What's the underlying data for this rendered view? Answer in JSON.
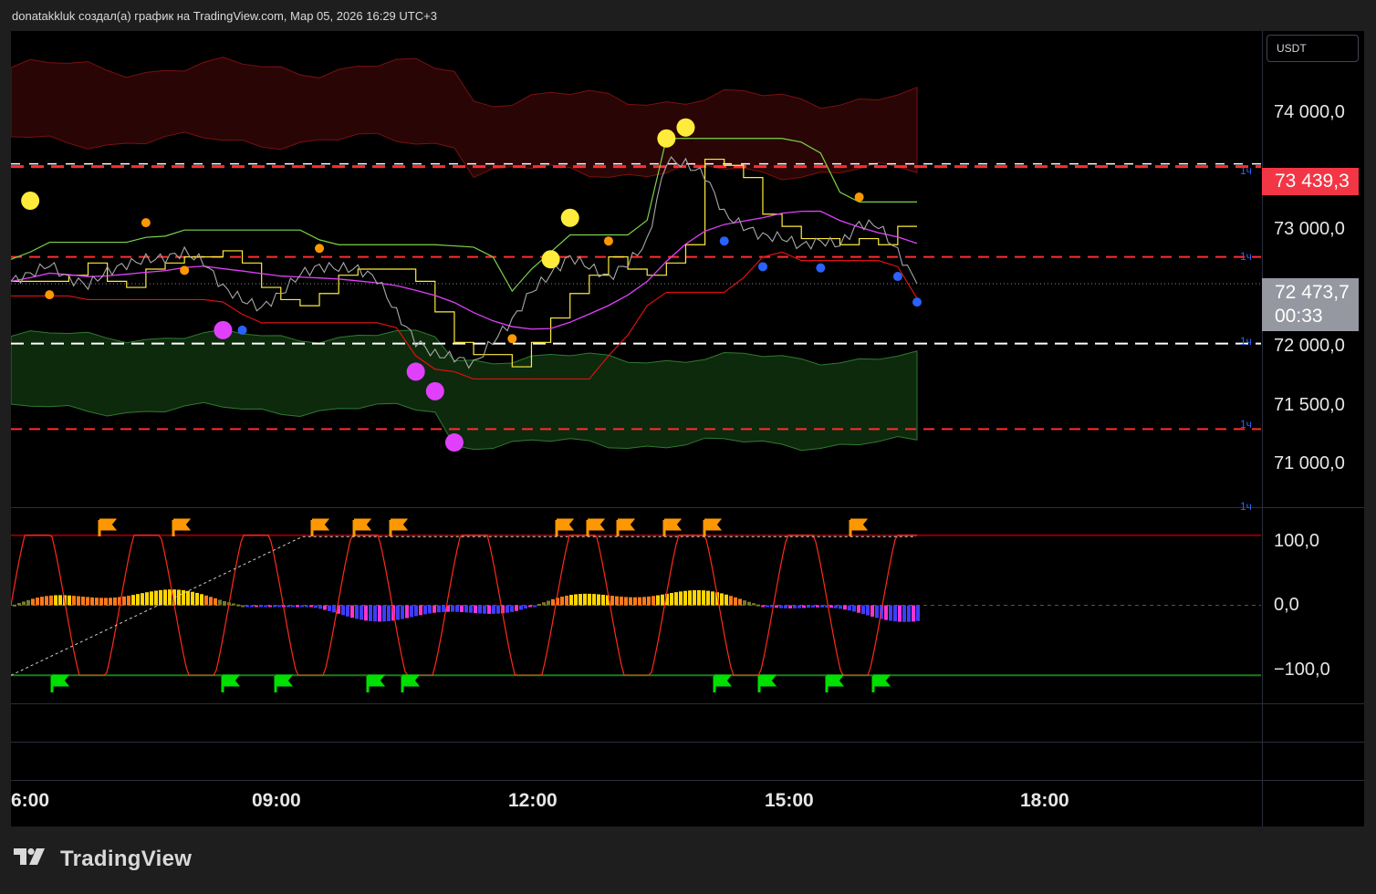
{
  "header": {
    "text": "donatakkluk создал(а) график на TradingView.com, Мар 05, 2026 16:29 UTC+3"
  },
  "currency_button": {
    "label": "USDT"
  },
  "brand": {
    "name": "TradingView"
  },
  "price_axis": {
    "labels": [
      "74 000,0",
      "73 000,0",
      "72 000,0",
      "71 500,0",
      "71 000,0"
    ],
    "last_price_tag": "73 439,3",
    "current_price": "72 473,7",
    "countdown": "00:33",
    "timeframe_marks": [
      "1ч",
      "1ч",
      "1ч",
      "1ч",
      "1ч"
    ]
  },
  "oscillator_axis": {
    "labels": [
      "100,0",
      "0,0",
      "−100,0"
    ]
  },
  "time_axis": {
    "labels": [
      "6:00",
      "09:00",
      "12:00",
      "15:00",
      "18:00"
    ]
  },
  "colors": {
    "background": "#000000",
    "price_line": "#a8a8a8",
    "resistance_zone": "#2a0505",
    "support_zone": "#0d2a0d",
    "red_line": "#ff2e2e",
    "green_line": "#4caf50",
    "magenta_ma": "#e040fb",
    "yellow_line": "#ffeb3b",
    "osc_line": "#ff2a1a",
    "last_tag": "#f23645"
  },
  "chart_data": {
    "type": "line",
    "title": "",
    "x_ticks": [
      "6:00",
      "09:00",
      "12:00",
      "15:00",
      "18:00"
    ],
    "y_ticks": [
      74000,
      73000,
      72000,
      71500,
      71000
    ],
    "ylim": [
      70650,
      74550
    ],
    "series": [
      {
        "values": [
          72500,
          72560,
          72640,
          72520,
          72470,
          72580,
          72640,
          72680,
          72690,
          72740,
          72660,
          72450,
          72350,
          72280,
          72400,
          72560,
          72620,
          72610,
          72600,
          72520,
          72240,
          72010,
          71900,
          71880,
          71820,
          72010,
          72180,
          72420,
          72560,
          72700,
          72620,
          72530,
          72650,
          72820,
          73490,
          73460,
          73370,
          73050,
          72950,
          72870,
          72860,
          72790,
          72830,
          72800,
          72970,
          72960,
          72740,
          72480
        ]
      }
    ],
    "levels": [
      73439.3,
      72700,
      71990,
      71290
    ],
    "oscillator": {
      "ylim": [
        -140,
        140
      ],
      "levels": [
        100,
        0,
        -100
      ]
    }
  }
}
